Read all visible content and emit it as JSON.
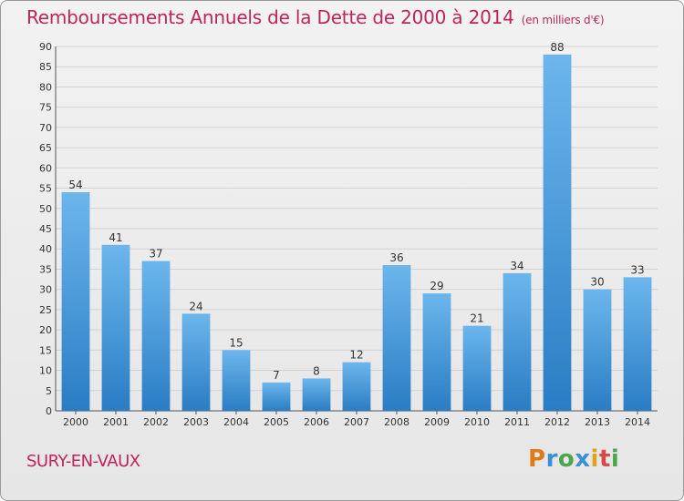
{
  "chart_data": {
    "type": "bar",
    "title": "Remboursements Annuels de la Dette de 2000 à 2014",
    "subtitle": "(en milliers d'€)",
    "xlabel": "",
    "ylabel": "",
    "categories": [
      "2000",
      "2001",
      "2002",
      "2003",
      "2004",
      "2005",
      "2006",
      "2007",
      "2008",
      "2009",
      "2010",
      "2011",
      "2012",
      "2013",
      "2014"
    ],
    "values": [
      54,
      41,
      37,
      24,
      15,
      7,
      8,
      12,
      36,
      29,
      21,
      34,
      88,
      30,
      33
    ],
    "ylim": [
      0,
      90
    ],
    "ytick_step": 5,
    "grid": true,
    "legend": "none",
    "bar_color_light": "#6cb6ec",
    "bar_color_dark": "#2a7dc4"
  },
  "footer": {
    "commune": "SURY-EN-VAUX",
    "logo_text": "Proxiti",
    "logo_letters": [
      "P",
      "r",
      "o",
      "x",
      "i",
      "t",
      "i"
    ],
    "logo_colors": [
      "#e07b1a",
      "#3a8fd6",
      "#4aa84a",
      "#3a8fd6",
      "#e0a21a",
      "#d64a4a",
      "#4aa84a"
    ]
  }
}
